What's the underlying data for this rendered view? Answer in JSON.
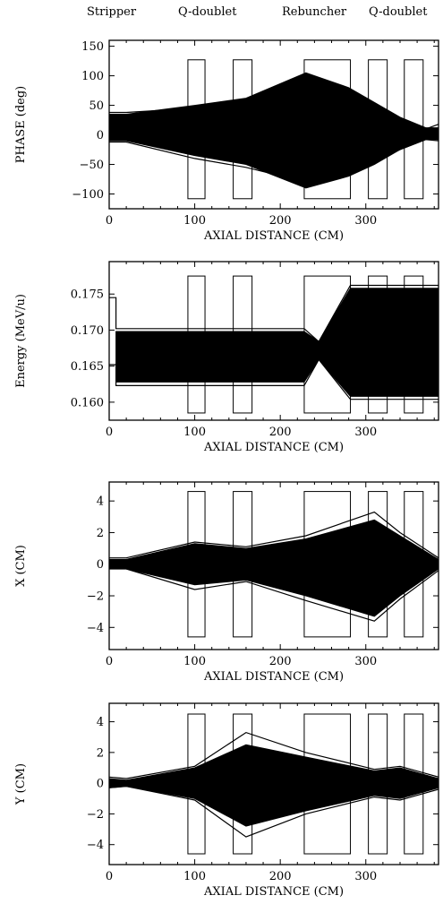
{
  "header_labels": [
    "Stripper",
    "Q-doublet",
    "Rebuncher",
    "Q-doublet"
  ],
  "chart_data": [
    {
      "type": "line",
      "ylabel": "PHASE (deg)",
      "xlabel": "AXIAL DISTANCE (CM)",
      "xlim": [
        0,
        385
      ],
      "ylim": [
        -125,
        160
      ],
      "xticks": [
        0,
        100,
        200,
        300
      ],
      "yticks": [
        150,
        100,
        50,
        0,
        -50,
        -100
      ],
      "ytick_labels": [
        "150",
        "100",
        "50",
        "0",
        "−50",
        "−100"
      ],
      "elements": [
        {
          "name": "quad-1",
          "x0": 92,
          "x1": 112,
          "y0": -108,
          "y1": 127
        },
        {
          "name": "quad-2",
          "x0": 145,
          "x1": 167,
          "y0": -108,
          "y1": 127
        },
        {
          "name": "rebuncher",
          "x0": 228,
          "x1": 282,
          "y0": -108,
          "y1": 127
        },
        {
          "name": "quad-3",
          "x0": 303,
          "x1": 325,
          "y0": -108,
          "y1": 127
        },
        {
          "name": "quad-4",
          "x0": 345,
          "x1": 367,
          "y0": -108,
          "y1": 127
        }
      ],
      "series": [
        {
          "x": [
            0,
            20,
            100,
            160,
            230,
            280,
            310,
            340,
            370,
            385
          ],
          "y": [
            38,
            38,
            45,
            58,
            82,
            66,
            45,
            25,
            10,
            18
          ]
        },
        {
          "x": [
            0,
            20,
            100,
            160,
            230,
            280,
            310,
            340,
            370,
            385
          ],
          "y": [
            -12,
            -12,
            -40,
            -55,
            -80,
            -65,
            -45,
            -25,
            -8,
            -10
          ]
        }
      ],
      "envelope_upper": {
        "x": [
          0,
          20,
          100,
          160,
          230,
          280,
          310,
          340,
          370,
          385
        ],
        "y": [
          35,
          35,
          50,
          62,
          105,
          80,
          55,
          30,
          12,
          12
        ]
      },
      "envelope_lower": {
        "x": [
          0,
          20,
          100,
          160,
          230,
          280,
          310,
          340,
          370,
          385
        ],
        "y": [
          -10,
          -10,
          -35,
          -50,
          -90,
          -70,
          -50,
          -25,
          -8,
          -8
        ]
      }
    },
    {
      "type": "line",
      "ylabel": "Energy (MeV/u)",
      "xlabel": "AXIAL DISTANCE (CM)",
      "xlim": [
        0,
        385
      ],
      "ylim": [
        0.1575,
        0.1795
      ],
      "xticks": [
        0,
        100,
        200,
        300
      ],
      "yticks": [
        0.175,
        0.17,
        0.165,
        0.16
      ],
      "ytick_labels": [
        "0.175",
        "0.170",
        "0.165",
        "0.160"
      ],
      "elements": [
        {
          "name": "quad-1",
          "x0": 92,
          "x1": 112,
          "y0": 0.1585,
          "y1": 0.1775
        },
        {
          "name": "quad-2",
          "x0": 145,
          "x1": 167,
          "y0": 0.1585,
          "y1": 0.1775
        },
        {
          "name": "rebuncher",
          "x0": 228,
          "x1": 282,
          "y0": 0.1585,
          "y1": 0.1775
        },
        {
          "name": "quad-3",
          "x0": 303,
          "x1": 325,
          "y0": 0.1585,
          "y1": 0.1775
        },
        {
          "name": "quad-4",
          "x0": 345,
          "x1": 367,
          "y0": 0.1585,
          "y1": 0.1775
        }
      ],
      "series": [
        {
          "x": [
            0,
            8,
            8,
            228,
            245,
            282,
            385
          ],
          "y": [
            0.1745,
            0.1745,
            0.1702,
            0.1702,
            0.1684,
            0.1762,
            0.1762
          ]
        },
        {
          "x": [
            0,
            8,
            8,
            228,
            245,
            282,
            385
          ],
          "y": [
            0.1652,
            0.1652,
            0.1623,
            0.1623,
            0.1659,
            0.1604,
            0.1604
          ]
        }
      ],
      "envelope_upper": {
        "x": [
          8,
          228,
          245,
          282,
          385
        ],
        "y": [
          0.1698,
          0.1698,
          0.1684,
          0.1758,
          0.1758
        ]
      },
      "envelope_lower": {
        "x": [
          8,
          228,
          245,
          282,
          385
        ],
        "y": [
          0.1628,
          0.1628,
          0.1659,
          0.1608,
          0.1608
        ]
      }
    },
    {
      "type": "line",
      "ylabel": "X (CM)",
      "xlabel": "AXIAL DISTANCE (CM)",
      "xlim": [
        0,
        385
      ],
      "ylim": [
        -5.4,
        5.2
      ],
      "xticks": [
        0,
        100,
        200,
        300
      ],
      "yticks": [
        4,
        2,
        0,
        -2,
        -4
      ],
      "ytick_labels": [
        "4",
        "2",
        "0",
        "−2",
        "−4"
      ],
      "elements": [
        {
          "name": "quad-1",
          "x0": 92,
          "x1": 112,
          "y0": -4.6,
          "y1": 4.6
        },
        {
          "name": "quad-2",
          "x0": 145,
          "x1": 167,
          "y0": -4.6,
          "y1": 4.6
        },
        {
          "name": "rebuncher",
          "x0": 228,
          "x1": 282,
          "y0": -4.6,
          "y1": 4.6
        },
        {
          "name": "quad-3",
          "x0": 303,
          "x1": 325,
          "y0": -4.6,
          "y1": 4.6
        },
        {
          "name": "quad-4",
          "x0": 345,
          "x1": 367,
          "y0": -4.6,
          "y1": 4.6
        }
      ],
      "series": [
        {
          "x": [
            0,
            20,
            100,
            160,
            230,
            310,
            340,
            385
          ],
          "y": [
            0.4,
            0.4,
            1.4,
            1.1,
            1.8,
            3.3,
            2.0,
            0.4
          ]
        },
        {
          "x": [
            0,
            20,
            100,
            160,
            230,
            310,
            340,
            385
          ],
          "y": [
            -0.3,
            -0.3,
            -1.6,
            -1.1,
            -2.3,
            -3.6,
            -2.2,
            -0.4
          ]
        }
      ],
      "envelope_upper": {
        "x": [
          0,
          20,
          100,
          160,
          230,
          310,
          340,
          385
        ],
        "y": [
          0.3,
          0.3,
          1.3,
          1.0,
          1.6,
          2.8,
          1.8,
          0.3
        ]
      },
      "envelope_lower": {
        "x": [
          0,
          20,
          100,
          160,
          230,
          310,
          340,
          385
        ],
        "y": [
          -0.3,
          -0.3,
          -1.3,
          -1.0,
          -2.0,
          -3.3,
          -2.0,
          -0.3
        ]
      }
    },
    {
      "type": "line",
      "ylabel": "Y (CM)",
      "xlabel": "AXIAL DISTANCE (CM)",
      "xlim": [
        0,
        385
      ],
      "ylim": [
        -5.3,
        5.2
      ],
      "xticks": [
        0,
        100,
        200,
        300
      ],
      "yticks": [
        4,
        2,
        0,
        -2,
        -4
      ],
      "ytick_labels": [
        "4",
        "2",
        "0",
        "−2",
        "−4"
      ],
      "elements": [
        {
          "name": "quad-1",
          "x0": 92,
          "x1": 112,
          "y0": -4.6,
          "y1": 4.5
        },
        {
          "name": "quad-2",
          "x0": 145,
          "x1": 167,
          "y0": -4.6,
          "y1": 4.5
        },
        {
          "name": "rebuncher",
          "x0": 228,
          "x1": 282,
          "y0": -4.6,
          "y1": 4.5
        },
        {
          "name": "quad-3",
          "x0": 303,
          "x1": 325,
          "y0": -4.6,
          "y1": 4.5
        },
        {
          "name": "quad-4",
          "x0": 345,
          "x1": 367,
          "y0": -4.6,
          "y1": 4.5
        }
      ],
      "series": [
        {
          "x": [
            0,
            20,
            100,
            160,
            230,
            310,
            340,
            385
          ],
          "y": [
            0.4,
            0.3,
            1.1,
            3.3,
            2.0,
            0.9,
            1.1,
            0.4
          ]
        },
        {
          "x": [
            0,
            20,
            100,
            160,
            230,
            310,
            340,
            385
          ],
          "y": [
            -0.3,
            -0.2,
            -1.1,
            -3.5,
            -2.0,
            -0.9,
            -1.1,
            -0.4
          ]
        }
      ],
      "envelope_upper": {
        "x": [
          0,
          20,
          100,
          160,
          230,
          310,
          340,
          385
        ],
        "y": [
          0.3,
          0.2,
          1.0,
          2.5,
          1.7,
          0.8,
          1.0,
          0.3
        ]
      },
      "envelope_lower": {
        "x": [
          0,
          20,
          100,
          160,
          230,
          310,
          340,
          385
        ],
        "y": [
          -0.3,
          -0.2,
          -1.0,
          -2.8,
          -1.8,
          -0.8,
          -1.0,
          -0.3
        ]
      }
    }
  ]
}
